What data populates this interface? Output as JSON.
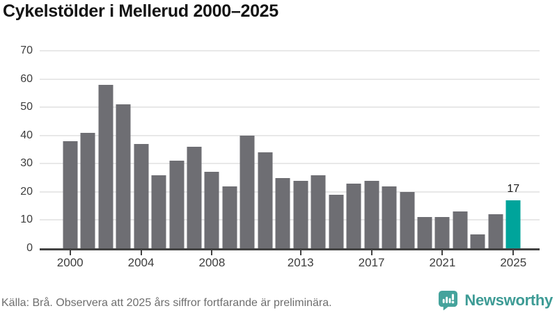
{
  "title": "Cykelstölder i Mellerud 2000–2025",
  "footer": {
    "source_note": "Källa: Brå. Observera att 2025 års siffror fortfarande är preliminära.",
    "brand": "Newsworthy"
  },
  "colors": {
    "bar": "#6e6e73",
    "highlight": "#00a49b",
    "grid": "#e8e8e8",
    "axis": "#424242",
    "axis_label": "#3d3d3d",
    "title": "#141414",
    "footer_text": "#6e6e6e",
    "brand": "#3d9b95",
    "logo_icon": "#45a39c"
  },
  "chart_data": {
    "type": "bar",
    "title": "Cykelstölder i Mellerud 2000–2025",
    "x": [
      2000,
      2001,
      2002,
      2003,
      2004,
      2005,
      2006,
      2007,
      2008,
      2009,
      2010,
      2011,
      2012,
      2013,
      2014,
      2015,
      2016,
      2017,
      2018,
      2019,
      2020,
      2021,
      2022,
      2023,
      2024,
      2025
    ],
    "values": [
      38,
      41,
      58,
      51,
      37,
      26,
      31,
      36,
      27,
      22,
      40,
      34,
      25,
      24,
      26,
      19,
      23,
      24,
      22,
      20,
      11,
      11,
      13,
      5,
      12,
      17
    ],
    "highlight_year": 2025,
    "bar_label": "17",
    "ylim": [
      0,
      70
    ],
    "yticks": [
      0,
      10,
      20,
      30,
      40,
      50,
      60,
      70
    ],
    "xticks": [
      2000,
      2004,
      2008,
      2013,
      2017,
      2021,
      2025
    ],
    "grid": "horizontal",
    "legend": null
  }
}
